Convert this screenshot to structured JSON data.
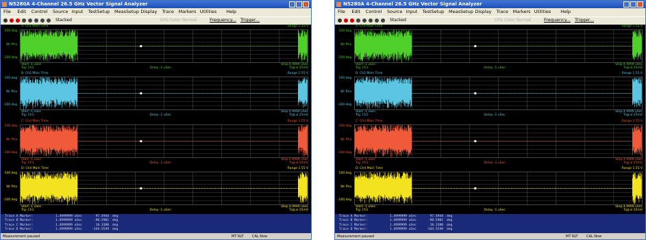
{
  "windows": [
    {
      "title": "N5280A 4-Channel 26.5 GHz Vector Signal Analyzer",
      "menu": [
        "File",
        "Edit",
        "Control",
        "Source",
        "Input",
        "TestSetup",
        "MeasSetup",
        "Display",
        "Trace",
        "Markers",
        "Utilities",
        "Help"
      ],
      "toolbar": [
        "Stacked",
        "10% Color Normal",
        "Frequency...",
        "Trigger..."
      ],
      "traces": [
        {
          "name": "A: Ch1 Main Time",
          "range": "Range 1.55 V",
          "y_top": "100 deg",
          "y_label": "Wr Pha",
          "y_bottom": "-100 deg",
          "start": "Start -1 uSec",
          "trigger": "Trg: Ch1",
          "delay": "Delay -1 uSec",
          "stop": "Stop 4.9999 uSec",
          "trig_level": "TrgLvl 25mV",
          "color": "#4fcf2a"
        },
        {
          "name": "B: Ch2 Main Time",
          "range": "Range 1.55 V",
          "y_top": "100 deg",
          "y_label": "Wr Pha",
          "y_bottom": "-100 deg",
          "start": "Start -1 uSec",
          "trigger": "Trg: Ch1",
          "delay": "Delay -1 uSec",
          "stop": "Stop 4.9999 uSec",
          "trig_level": "TrgLvl 25mV",
          "color": "#5cc6e2"
        },
        {
          "name": "C: Ch3 Main Time",
          "range": "Range 1.55 V",
          "y_top": "100 deg",
          "y_label": "Wr Pha",
          "y_bottom": "-100 deg",
          "start": "Start -1 uSec",
          "trigger": "Trg: Ch1",
          "delay": "Delay -1 uSec",
          "stop": "Stop 4.9999 uSec",
          "trig_level": "TrgLvl 25mV",
          "color": "#ef5b3a"
        },
        {
          "name": "D: Ch4 Main Time",
          "range": "Range 1.55 V",
          "y_top": "100 deg",
          "y_label": "Wr Pha",
          "y_bottom": "-100 deg",
          "start": "Start -1 uSec",
          "trigger": "Trg: Ch1",
          "delay": "Delay -1 uSec",
          "stop": "Stop 4.9999 uSec",
          "trig_level": "TrgLvl 25mV",
          "color": "#f3e21f"
        }
      ],
      "markers": [
        [
          "Trace A Marker:",
          "1.4999999 uSec",
          "97.4944",
          "deg"
        ],
        [
          "Trace B Marker:",
          "1.4999999 uSec",
          "-90.5901",
          "deg"
        ],
        [
          "Trace C Marker:",
          "1.4999999 uSec",
          "18.3380",
          "deg"
        ],
        [
          "Trace D Marker:",
          "1.4999999 uSec",
          "-144.5549",
          "deg"
        ]
      ],
      "status": [
        "Measurement paused",
        "MT RLT",
        "CAL Now"
      ]
    },
    {
      "title": "N5280A 4-Channel 26.5 GHz Vector Signal Analyzer",
      "menu": [
        "File",
        "Edit",
        "Control",
        "Source",
        "Input",
        "TestSetup",
        "MeasSetup",
        "Display",
        "Trace",
        "Markers",
        "Utilities",
        "Help"
      ],
      "toolbar": [
        "Stacked",
        "10% Color Normal",
        "Frequency...",
        "Trigger..."
      ],
      "traces": [
        {
          "name": "A: Ch1 Main Time",
          "range": "Range 1.55 V",
          "y_top": "100 deg",
          "y_label": "Wr Pha",
          "y_bottom": "-100 deg",
          "start": "Start -1 uSec",
          "trigger": "Trg: Ch1",
          "delay": "Delay -1 uSec",
          "stop": "Stop 4.9999 uSec",
          "trig_level": "TrgLvl 25mV",
          "color": "#4fcf2a"
        },
        {
          "name": "B: Ch2 Main Time",
          "range": "Range 1.55 V",
          "y_top": "100 deg",
          "y_label": "Wr Pha",
          "y_bottom": "-100 deg",
          "start": "Start -1 uSec",
          "trigger": "Trg: Ch1",
          "delay": "Delay -1 uSec",
          "stop": "Stop 4.9999 uSec",
          "trig_level": "TrgLvl 25mV",
          "color": "#5cc6e2"
        },
        {
          "name": "C: Ch3 Main Time",
          "range": "Range 1.55 V",
          "y_top": "100 deg",
          "y_label": "Wr Pha",
          "y_bottom": "-100 deg",
          "start": "Start -1 uSec",
          "trigger": "Trg: Ch1",
          "delay": "Delay -1 uSec",
          "stop": "Stop 4.9999 uSec",
          "trig_level": "TrgLvl 25mV",
          "color": "#ef5b3a"
        },
        {
          "name": "D: Ch4 Main Time",
          "range": "Range 1.55 V",
          "y_top": "100 deg",
          "y_label": "Wr Pha",
          "y_bottom": "-100 deg",
          "start": "Start -1 uSec",
          "trigger": "Trg: Ch1",
          "delay": "Delay -1 uSec",
          "stop": "Stop 4.9999 uSec",
          "trig_level": "TrgLvl 25mV",
          "color": "#f3e21f"
        }
      ],
      "markers": [
        [
          "Trace A Marker:",
          "1.4999999 uSec",
          "97.4944",
          "deg"
        ],
        [
          "Trace B Marker:",
          "1.4999999 uSec",
          "-90.5901",
          "deg"
        ],
        [
          "Trace C Marker:",
          "1.4999999 uSec",
          "18.3380",
          "deg"
        ],
        [
          "Trace D Marker:",
          "1.4999999 uSec",
          "-144.5549",
          "deg"
        ]
      ],
      "status": [
        "Measurement paused",
        "MT RLT",
        "CAL Now"
      ]
    }
  ]
}
